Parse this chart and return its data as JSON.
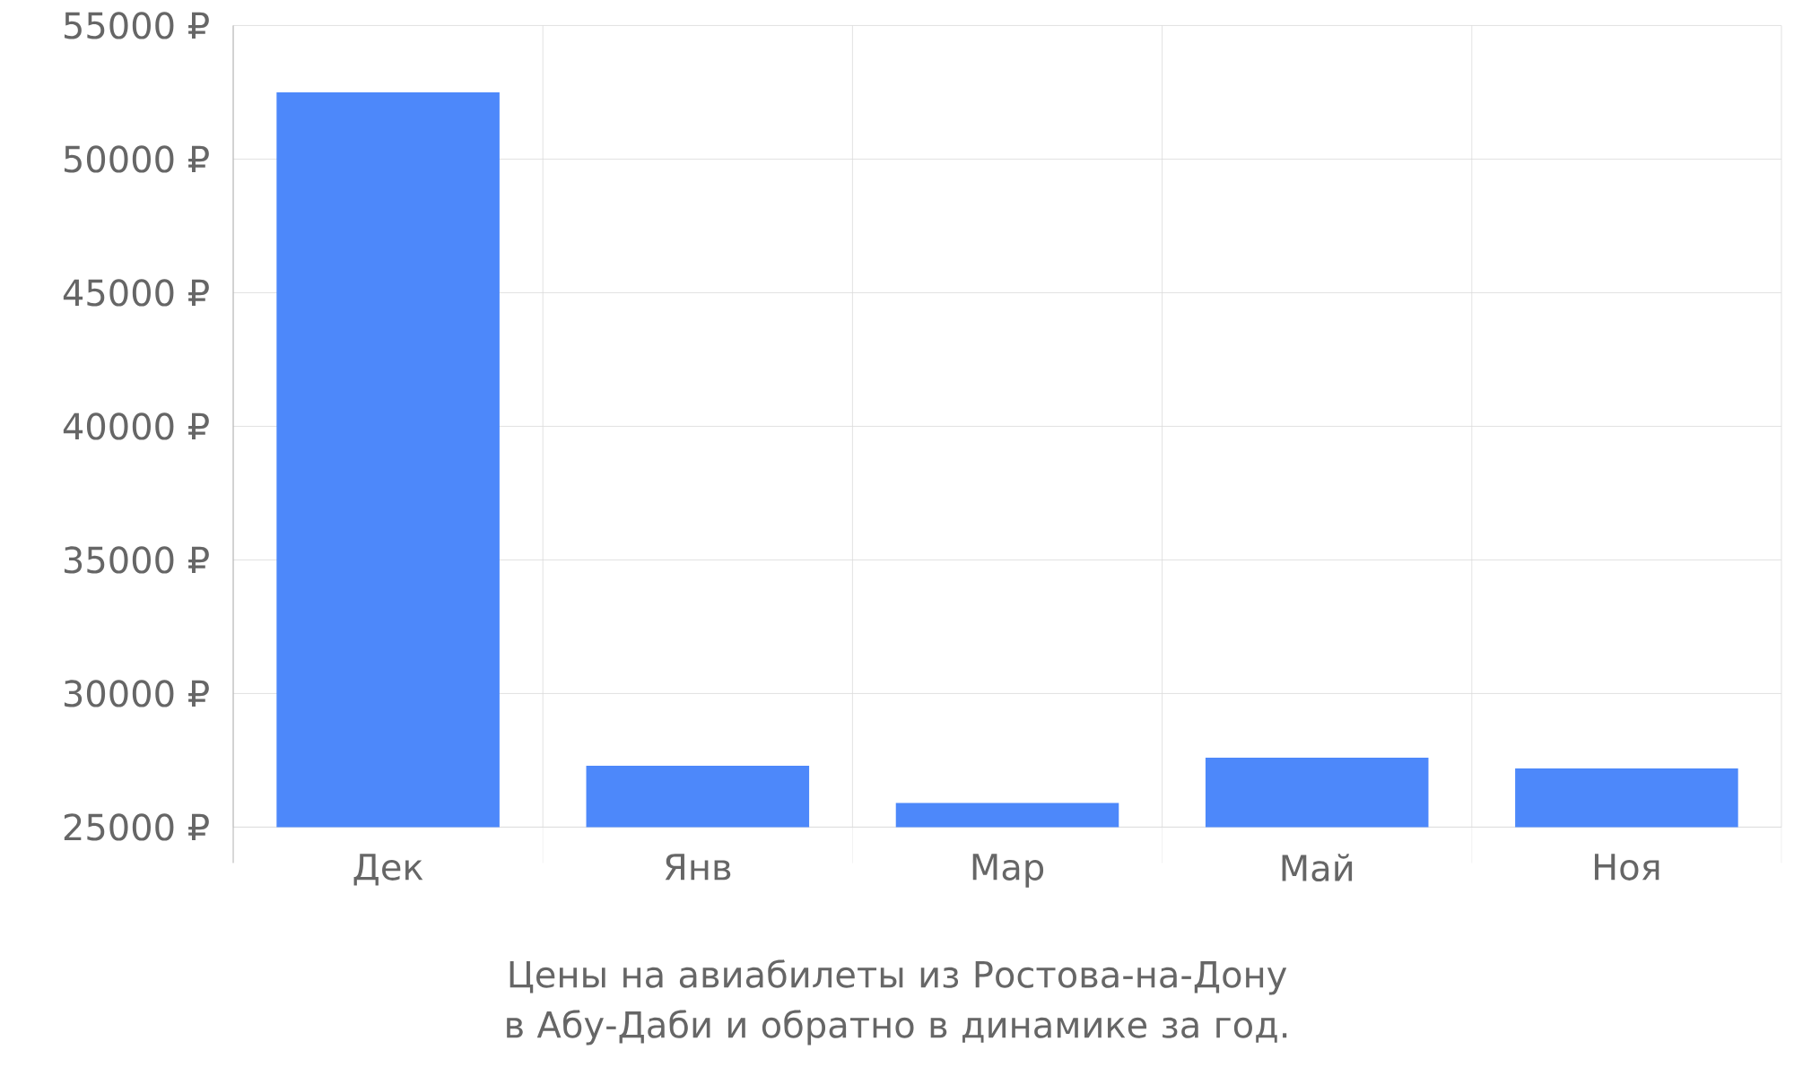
{
  "chart_data": {
    "type": "bar",
    "categories": [
      "Дек",
      "Янв",
      "Мар",
      "Май",
      "Ноя"
    ],
    "values": [
      52500,
      27300,
      25900,
      27600,
      27200
    ],
    "color": "#4d88fa",
    "ylim": [
      25000,
      55000
    ],
    "yticks": [
      {
        "value": 25000,
        "label": "25000 ₽"
      },
      {
        "value": 30000,
        "label": "30000 ₽"
      },
      {
        "value": 35000,
        "label": "35000 ₽"
      },
      {
        "value": 40000,
        "label": "40000 ₽"
      },
      {
        "value": 45000,
        "label": "45000 ₽"
      },
      {
        "value": 50000,
        "label": "50000 ₽"
      },
      {
        "value": 55000,
        "label": "55000 ₽"
      }
    ],
    "grid": true,
    "annotations": [
      "Цены на авиабилеты из Ростова-на-Дону в Абу-Даби и обратно в динамике за год."
    ]
  }
}
